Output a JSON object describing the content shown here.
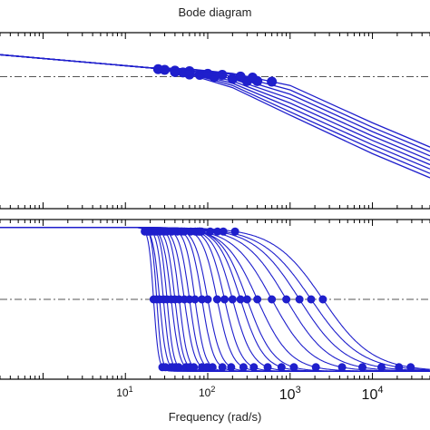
{
  "chart_data": [
    {
      "type": "line",
      "panel": "magnitude",
      "title": "Bode diagram",
      "xlabel": "",
      "ylabel": "",
      "xscale": "log",
      "xlim": [
        0.3,
        50000
      ],
      "ylim": [
        -120,
        40
      ],
      "grid": false,
      "reference_line": {
        "y": 0,
        "style": "dash-dot"
      },
      "series_color": "#1f1fcc",
      "marker": "circle",
      "series": [
        {
          "x": [
            0.3,
            20,
            60,
            200,
            1000,
            10000,
            50000
          ],
          "y": [
            20,
            8,
            2,
            -10,
            -35,
            -70,
            -92
          ],
          "markers_at": [
            25,
            40,
            60
          ]
        },
        {
          "x": [
            0.3,
            20,
            60,
            200,
            1000,
            10000,
            50000
          ],
          "y": [
            20,
            8,
            3,
            -8,
            -32,
            -66,
            -88
          ],
          "markers_at": [
            30,
            50
          ]
        },
        {
          "x": [
            0.3,
            20,
            60,
            200,
            1000,
            10000,
            50000
          ],
          "y": [
            20,
            8,
            4,
            -6,
            -28,
            -62,
            -84
          ],
          "markers_at": [
            40,
            80
          ]
        },
        {
          "x": [
            0.3,
            20,
            60,
            200,
            1000,
            10000,
            50000
          ],
          "y": [
            20,
            8,
            5,
            -4,
            -24,
            -58,
            -80
          ],
          "markers_at": [
            60,
            120
          ]
        },
        {
          "x": [
            0.3,
            20,
            60,
            200,
            1000,
            10000,
            50000
          ],
          "y": [
            20,
            8,
            6,
            -2,
            -20,
            -54,
            -76
          ],
          "markers_at": [
            100,
            200
          ]
        },
        {
          "x": [
            0.3,
            20,
            60,
            200,
            1000,
            10000,
            50000
          ],
          "y": [
            20,
            8,
            7,
            0,
            -16,
            -50,
            -72
          ],
          "markers_at": [
            150,
            300
          ]
        },
        {
          "x": [
            0.3,
            20,
            60,
            200,
            1000,
            10000,
            50000
          ],
          "y": [
            20,
            8,
            7,
            2,
            -12,
            -46,
            -68
          ],
          "markers_at": [
            250,
            400
          ]
        },
        {
          "x": [
            0.3,
            20,
            60,
            200,
            1000,
            10000,
            50000
          ],
          "y": [
            20,
            8,
            7,
            3,
            -8,
            -42,
            -64
          ],
          "markers_at": [
            350,
            600
          ]
        }
      ]
    },
    {
      "type": "line",
      "panel": "phase",
      "xlabel": "Frequency (rad/s)",
      "ylabel": "",
      "xscale": "log",
      "xlim": [
        0.3,
        50000
      ],
      "ylim": [
        -190,
        10
      ],
      "x_ticks": [
        {
          "value": 10,
          "base": "10",
          "exp": "1"
        },
        {
          "value": 100,
          "base": "10",
          "exp": "2"
        },
        {
          "value": 1000,
          "base": "10",
          "exp": "3"
        },
        {
          "value": 10000,
          "base": "10",
          "exp": "4"
        }
      ],
      "grid": false,
      "reference_line": {
        "y": -90,
        "style": "dash-dot"
      },
      "series_color": "#1f1fcc",
      "marker": "circle",
      "series": [
        {
          "drop_at": 22,
          "width": 0.03
        },
        {
          "drop_at": 24,
          "width": 0.03
        },
        {
          "drop_at": 26,
          "width": 0.04
        },
        {
          "drop_at": 29,
          "width": 0.04
        },
        {
          "drop_at": 32,
          "width": 0.04
        },
        {
          "drop_at": 36,
          "width": 0.05
        },
        {
          "drop_at": 40,
          "width": 0.05
        },
        {
          "drop_at": 45,
          "width": 0.05
        },
        {
          "drop_at": 52,
          "width": 0.06
        },
        {
          "drop_at": 60,
          "width": 0.06
        },
        {
          "drop_at": 70,
          "width": 0.06
        },
        {
          "drop_at": 85,
          "width": 0.07
        },
        {
          "drop_at": 100,
          "width": 0.08
        },
        {
          "drop_at": 130,
          "width": 0.09
        },
        {
          "drop_at": 160,
          "width": 0.1
        },
        {
          "drop_at": 200,
          "width": 0.12
        },
        {
          "drop_at": 250,
          "width": 0.14
        },
        {
          "drop_at": 300,
          "width": 0.16
        },
        {
          "drop_at": 400,
          "width": 0.2
        },
        {
          "drop_at": 600,
          "width": 0.24
        },
        {
          "drop_at": 900,
          "width": 0.26
        },
        {
          "drop_at": 1300,
          "width": 0.28
        },
        {
          "drop_at": 1800,
          "width": 0.3
        },
        {
          "drop_at": 2500,
          "width": 0.3
        }
      ]
    }
  ]
}
